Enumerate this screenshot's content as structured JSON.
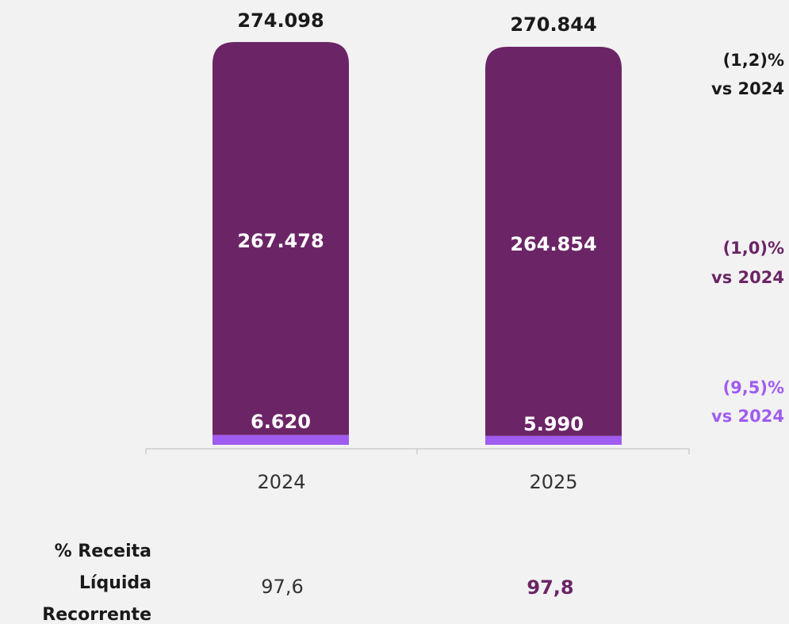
{
  "chart_data": {
    "type": "bar",
    "stacked": true,
    "categories": [
      "2024",
      "2025"
    ],
    "series": [
      {
        "values": [
          6620,
          5990
        ]
      },
      {
        "values": [
          267478,
          264854
        ]
      }
    ],
    "data_labels": {
      "totals": [
        "274.098",
        "270.844"
      ],
      "upper": [
        "267.478",
        "264.854"
      ],
      "lower": [
        "6.620",
        "5.990"
      ]
    },
    "ylim": [
      0,
      274098
    ],
    "grid": false,
    "legend": "none",
    "variations": [
      {
        "line1": "(1,2)%",
        "line2": "vs 2024",
        "color": "#1a1a1a"
      },
      {
        "line1": "(1,0)%",
        "line2": "vs 2024",
        "color": "#6b2566"
      },
      {
        "line1": "(9,5)%",
        "line2": "vs 2024",
        "color": "#a05cf0"
      }
    ],
    "colors": {
      "upper": "#6b2566",
      "lower": "#a05cf0",
      "axis": "#cccccc",
      "background": "#f2f2f2"
    }
  },
  "footer": {
    "label_lines": [
      "% Receita",
      "Líquida",
      "Recorrente"
    ],
    "values": [
      {
        "text": "97,6",
        "color": "#333333"
      },
      {
        "text": "97,8",
        "color": "#6b2566"
      }
    ]
  }
}
